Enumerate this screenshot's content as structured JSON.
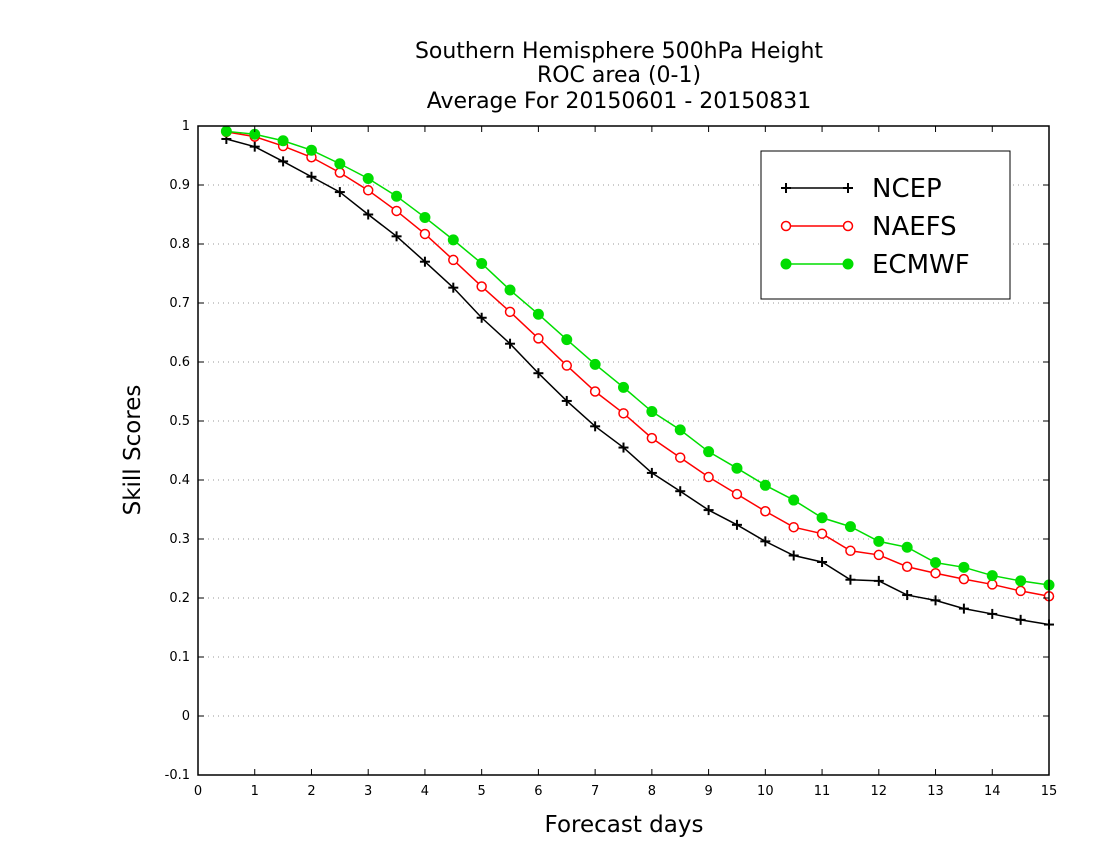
{
  "chart_data": {
    "type": "line",
    "title": [
      "Southern Hemisphere 500hPa Height",
      "ROC area (0-1)",
      "Average For 20150601 - 20150831"
    ],
    "xlabel": "Forecast days",
    "ylabel": "Skill Scores",
    "xlim": [
      0,
      15
    ],
    "ylim": [
      -0.1,
      1
    ],
    "x_ticks": [
      0,
      1,
      2,
      3,
      4,
      5,
      6,
      7,
      8,
      9,
      10,
      11,
      12,
      13,
      14,
      15
    ],
    "x_tick_labels": [
      "0",
      "1",
      "2",
      "3",
      "4",
      "5",
      "6",
      "7",
      "8",
      "9",
      "10",
      "11",
      "12",
      "13",
      "14",
      "15"
    ],
    "y_ticks": [
      -0.1,
      0,
      0.1,
      0.2,
      0.3,
      0.4,
      0.5,
      0.6,
      0.7,
      0.8,
      0.9,
      1
    ],
    "y_tick_labels": [
      "-0.1",
      "0",
      "0.1",
      "0.2",
      "0.3",
      "0.4",
      "0.5",
      "0.6",
      "0.7",
      "0.8",
      "0.9",
      "1"
    ],
    "grid": "horizontal-dotted",
    "legend_position": "top-right",
    "x": [
      0.5,
      1,
      1.5,
      2,
      2.5,
      3,
      3.5,
      4,
      4.5,
      5,
      5.5,
      6,
      6.5,
      7,
      7.5,
      8,
      8.5,
      9,
      9.5,
      10,
      10.5,
      11,
      11.5,
      12,
      12.5,
      13,
      13.5,
      14,
      14.5,
      15
    ],
    "series": [
      {
        "name": "NCEP",
        "color": "#000000",
        "marker": "plus",
        "values": [
          0.978,
          0.965,
          0.94,
          0.914,
          0.888,
          0.85,
          0.813,
          0.77,
          0.726,
          0.675,
          0.631,
          0.581,
          0.534,
          0.491,
          0.455,
          0.412,
          0.381,
          0.349,
          0.324,
          0.296,
          0.272,
          0.261,
          0.231,
          0.229,
          0.205,
          0.196,
          0.182,
          0.173,
          0.163,
          0.155
        ]
      },
      {
        "name": "NAEFS",
        "color": "#ff0000",
        "marker": "open-circle",
        "values": [
          0.99,
          0.982,
          0.966,
          0.947,
          0.921,
          0.891,
          0.856,
          0.817,
          0.773,
          0.728,
          0.685,
          0.64,
          0.594,
          0.55,
          0.513,
          0.471,
          0.438,
          0.405,
          0.376,
          0.347,
          0.32,
          0.309,
          0.28,
          0.273,
          0.253,
          0.242,
          0.232,
          0.223,
          0.212,
          0.203
        ]
      },
      {
        "name": "ECMWF",
        "color": "#00dd00",
        "marker": "filled-circle",
        "values": [
          0.991,
          0.986,
          0.975,
          0.959,
          0.936,
          0.911,
          0.881,
          0.845,
          0.807,
          0.767,
          0.722,
          0.681,
          0.638,
          0.596,
          0.557,
          0.516,
          0.485,
          0.448,
          0.42,
          0.391,
          0.366,
          0.336,
          0.321,
          0.296,
          0.286,
          0.26,
          0.252,
          0.238,
          0.229,
          0.222
        ]
      }
    ]
  }
}
